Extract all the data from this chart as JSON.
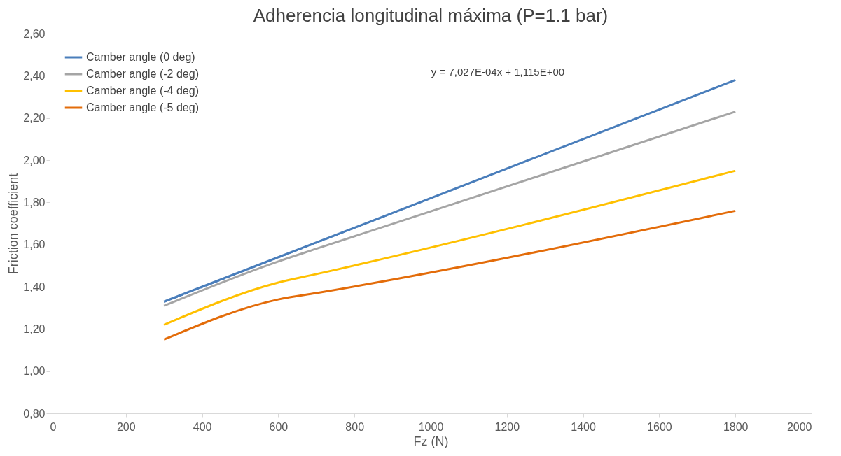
{
  "chart_data": {
    "type": "line",
    "title": "Adherencia longitudinal máxima (P=1.1 bar)",
    "xlabel": "Fz (N)",
    "ylabel": "Friction coefficient",
    "x": [
      300,
      600,
      700,
      1800
    ],
    "series": [
      {
        "name": "Camber angle (0 deg)",
        "color": "#4a7ebb",
        "values": [
          1.33,
          1.54,
          1.61,
          2.38
        ]
      },
      {
        "name": "Camber angle (-2 deg)",
        "color": "#a5a5a5",
        "values": [
          1.31,
          1.52,
          1.58,
          2.23
        ]
      },
      {
        "name": "Camber angle (-4 deg)",
        "color": "#ffc000",
        "values": [
          1.22,
          1.42,
          1.46,
          1.95
        ]
      },
      {
        "name": "Camber angle (-5 deg)",
        "color": "#e36c0a",
        "values": [
          1.15,
          1.34,
          1.37,
          1.76
        ]
      },
      {
        "type": "line",
        "x": [
          300,
          1800
        ],
        "values": [
          1.326,
          2.38
        ],
        "color": "#4a7ebb",
        "line_style": "dashed"
      }
    ],
    "annotations": [
      "y = 7,027E-04x + 1,115E+00"
    ],
    "xlim": [
      0,
      2000
    ],
    "xticks": [
      0,
      200,
      400,
      600,
      800,
      1000,
      1200,
      1400,
      1600,
      1800,
      2000
    ],
    "ylim": [
      0.8,
      2.6
    ],
    "yticks": [
      {
        "value": 0.8,
        "label": "0,80"
      },
      {
        "value": 1.0,
        "label": "1,00"
      },
      {
        "value": 1.2,
        "label": "1,20"
      },
      {
        "value": 1.4,
        "label": "1,40"
      },
      {
        "value": 1.6,
        "label": "1,60"
      },
      {
        "value": 1.8,
        "label": "1,80"
      },
      {
        "value": 2.0,
        "label": "2,00"
      },
      {
        "value": 2.2,
        "label": "2,20"
      },
      {
        "value": 2.4,
        "label": "2,40"
      },
      {
        "value": 2.6,
        "label": "2,60"
      }
    ],
    "grid": false,
    "legend": "top left",
    "marker": "none",
    "line_style": "solid"
  }
}
